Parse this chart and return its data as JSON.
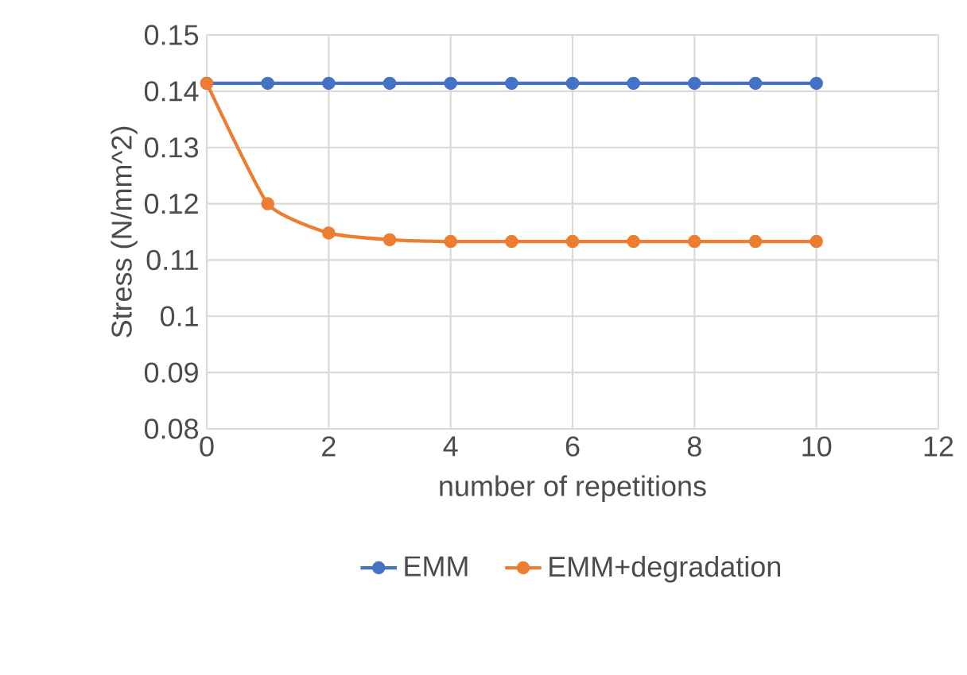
{
  "chart_data": {
    "type": "line",
    "xlabel": "number of repetitions",
    "ylabel": "Stress (N/mm^2)",
    "x": [
      0,
      1,
      2,
      3,
      4,
      5,
      6,
      7,
      8,
      9,
      10
    ],
    "series": [
      {
        "name": "EMM",
        "color": "#4472c4",
        "values": [
          0.1414,
          0.1414,
          0.1414,
          0.1414,
          0.1414,
          0.1414,
          0.1414,
          0.1414,
          0.1414,
          0.1414,
          0.1414
        ]
      },
      {
        "name": "EMM+degradation",
        "color": "#ed7d31",
        "values": [
          0.1414,
          0.12,
          0.1148,
          0.1136,
          0.1133,
          0.1133,
          0.1133,
          0.1133,
          0.1133,
          0.1133,
          0.1133
        ]
      }
    ],
    "xlim": [
      0,
      12
    ],
    "xticks": [
      0,
      2,
      4,
      6,
      8,
      10,
      12
    ],
    "ylim": [
      0.08,
      0.15
    ],
    "yticks": [
      0.08,
      0.09,
      0.1,
      0.11,
      0.12,
      0.13,
      0.14,
      0.15
    ],
    "grid": true,
    "legend": "bottom",
    "marker": "circle",
    "line_style": "solid"
  }
}
